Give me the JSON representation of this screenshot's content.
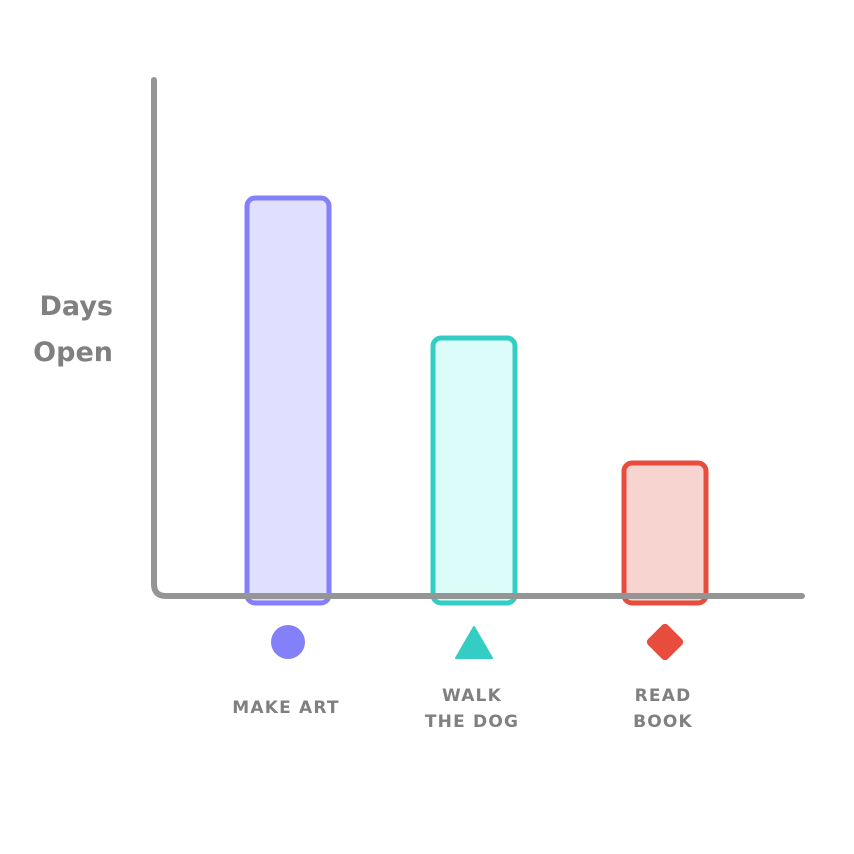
{
  "chart_data": {
    "type": "bar",
    "title": "",
    "xlabel": "",
    "ylabel": "Days Open",
    "ylabel_lines": [
      "Days",
      "Open"
    ],
    "ylim": [
      0,
      100
    ],
    "grid": false,
    "legend": "none",
    "axis_color": "#959595",
    "label_color": "#808080",
    "categories": [
      "MAKE ART",
      "WALK THE DOG",
      "READ BOOK"
    ],
    "category_lines": [
      [
        "MAKE ART"
      ],
      [
        "WALK",
        "THE DOG"
      ],
      [
        "READ",
        "BOOK"
      ]
    ],
    "values": [
      79,
      51,
      26
    ],
    "bars": [
      {
        "stroke": "#8480fa",
        "fill": "#e1dfff",
        "marker": "circle-icon"
      },
      {
        "stroke": "#34cdc3",
        "fill": "#dcfcf9",
        "marker": "triangle-icon"
      },
      {
        "stroke": "#e84c3d",
        "fill": "#f7d4cf",
        "marker": "diamond-icon"
      }
    ]
  }
}
